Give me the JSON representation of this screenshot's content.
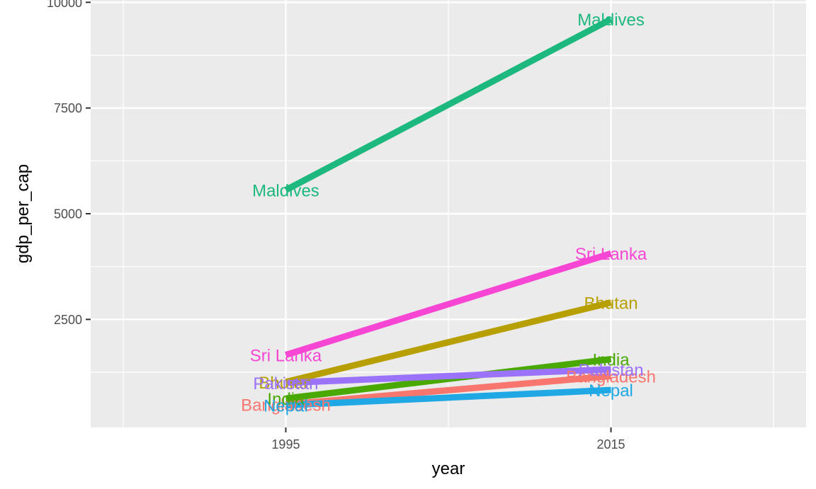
{
  "chart_data": {
    "type": "line",
    "title": "",
    "xlabel": "year",
    "ylabel": "gdp_per_cap",
    "x": [
      1995,
      2015
    ],
    "xlim": [
      1983,
      2027
    ],
    "ylim": [
      -55,
      10055
    ],
    "x_ticks": [
      "1995",
      "2015"
    ],
    "y_ticks": [
      "2500",
      "5000",
      "7500",
      "10000"
    ],
    "grid": true,
    "legend": "none",
    "series": [
      {
        "name": "Bangladesh",
        "color": "#F8766D",
        "values": [
          490,
          1160
        ]
      },
      {
        "name": "Bhutan",
        "color": "#B79F00",
        "values": [
          1020,
          2900
        ]
      },
      {
        "name": "India",
        "color": "#49A900",
        "values": [
          630,
          1560
        ]
      },
      {
        "name": "Maldives",
        "color": "#1CB87E",
        "values": [
          5560,
          9600
        ]
      },
      {
        "name": "Nepal",
        "color": "#20A8E4",
        "values": [
          470,
          830
        ]
      },
      {
        "name": "Pakistan",
        "color": "#9B73FB",
        "values": [
          1000,
          1320
        ]
      },
      {
        "name": "Sri Lanka",
        "color": "#F846D4",
        "values": [
          1660,
          4060
        ]
      }
    ]
  }
}
